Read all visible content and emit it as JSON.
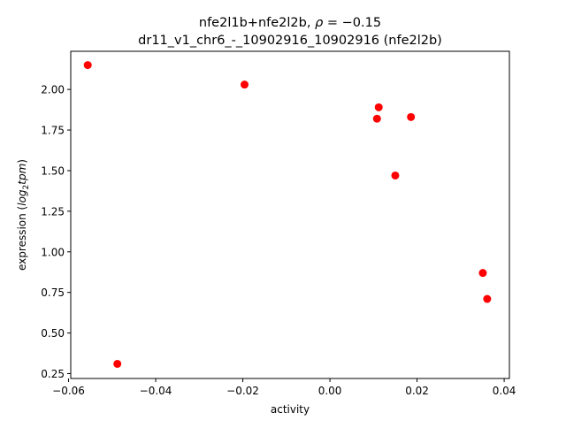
{
  "chart_data": {
    "type": "scatter",
    "title": "nfe2l1b+nfe2l2b, ρ = −0.15",
    "title_parts": {
      "prefix": "nfe2l1b+nfe2l2b, ",
      "rho": "ρ",
      "eq": " = −0.15"
    },
    "subtitle": "dr11_v1_chr6_-_10902916_10902916 (nfe2l2b)",
    "xlabel": "activity",
    "ylabel": "expression (log₂tpm)",
    "ylabel_parts": {
      "prefix": "expression (",
      "log": "log",
      "sub": "2",
      "tpm": "tpm",
      "suffix": ")"
    },
    "xlim": [
      -0.0595,
      0.0412
    ],
    "ylim": [
      0.22,
      2.235
    ],
    "xticks": [
      {
        "value": -0.06,
        "label": "−0.06"
      },
      {
        "value": -0.04,
        "label": "−0.04"
      },
      {
        "value": -0.02,
        "label": "−0.02"
      },
      {
        "value": 0.0,
        "label": "0.00"
      },
      {
        "value": 0.02,
        "label": "0.02"
      },
      {
        "value": 0.04,
        "label": "0.04"
      }
    ],
    "yticks": [
      {
        "value": 0.25,
        "label": "0.25"
      },
      {
        "value": 0.5,
        "label": "0.50"
      },
      {
        "value": 0.75,
        "label": "0.75"
      },
      {
        "value": 1.0,
        "label": "1.00"
      },
      {
        "value": 1.25,
        "label": "1.25"
      },
      {
        "value": 1.5,
        "label": "1.50"
      },
      {
        "value": 1.75,
        "label": "1.75"
      },
      {
        "value": 2.0,
        "label": "2.00"
      }
    ],
    "grid": false,
    "marker_color": "#ff0000",
    "points": [
      {
        "x": -0.0556,
        "y": 2.15
      },
      {
        "x": -0.0488,
        "y": 0.31
      },
      {
        "x": -0.0196,
        "y": 2.03
      },
      {
        "x": 0.0112,
        "y": 1.89
      },
      {
        "x": 0.0108,
        "y": 1.82
      },
      {
        "x": 0.0186,
        "y": 1.83
      },
      {
        "x": 0.015,
        "y": 1.47
      },
      {
        "x": 0.0351,
        "y": 0.87
      },
      {
        "x": 0.0361,
        "y": 0.71
      }
    ]
  }
}
